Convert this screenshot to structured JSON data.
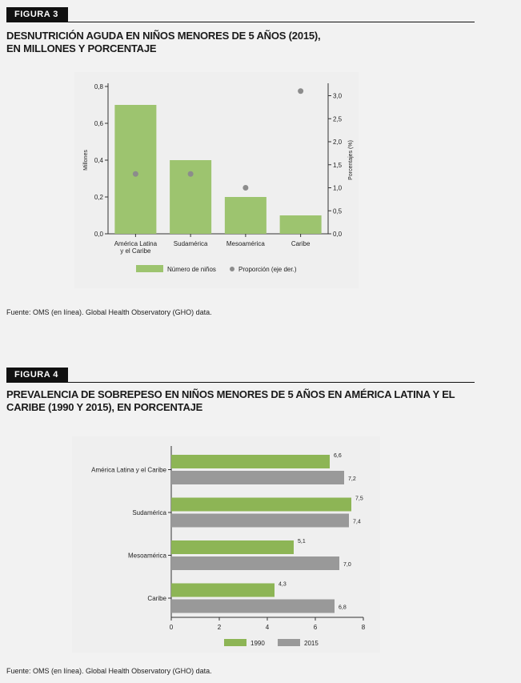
{
  "figure3": {
    "tag": "FIGURA 3",
    "title_lines": [
      "DESNUTRICIÓN AGUDA EN NIÑOS MENORES DE 5 AÑOS (2015),",
      "EN MILLONES Y PORCENTAJE"
    ],
    "source": "Fuente: OMS (en línea). Global Health Observatory (GHO) data."
  },
  "figure4": {
    "tag": "FIGURA 4",
    "title_lines": [
      "PREVALENCIA DE SOBREPESO EN NIÑOS MENORES DE 5 AÑOS EN AMÉRICA LATINA Y EL",
      "CARIBE (1990 Y 2015), EN PORCENTAJE"
    ],
    "source": "Fuente: OMS (en línea). Global Health Observatory (GHO) data."
  },
  "chart_data": [
    {
      "type": "bar",
      "categories": [
        [
          "América Latina",
          "y el Caribe"
        ],
        [
          "Sudamérica"
        ],
        [
          "Mesoamérica"
        ],
        [
          "Caribe"
        ]
      ],
      "series": [
        {
          "name": "Número de niños",
          "values": [
            0.7,
            0.4,
            0.2,
            0.1
          ],
          "color": "#9dc46f",
          "axis": "left"
        },
        {
          "name": "Proporción (eje der.)",
          "values": [
            1.3,
            1.3,
            1.0,
            3.1
          ],
          "color": "#8c8c8c",
          "axis": "right",
          "mark": "scatter"
        }
      ],
      "ylabel": "Millones",
      "y2label": "Porcentajes (%)",
      "ylim": [
        0,
        0.8
      ],
      "y2lim": [
        0,
        3.2
      ],
      "yticks": [
        "0,0",
        "0,2",
        "0,4",
        "0,6",
        "0,8"
      ],
      "y2ticks": [
        "0,0",
        "0,5",
        "1,0",
        "1,5",
        "2,0",
        "2,5",
        "3,0"
      ],
      "legend": "bottom"
    },
    {
      "type": "bar",
      "orientation": "horizontal",
      "categories": [
        "América Latina y el Caribe",
        "Sudamérica",
        "Mesoamérica",
        "Caribe"
      ],
      "series": [
        {
          "name": "1990",
          "values": [
            6.6,
            7.5,
            5.1,
            4.3
          ],
          "labels": [
            "6,6",
            "7,5",
            "5,1",
            "4,3"
          ],
          "color": "#8db555"
        },
        {
          "name": "2015",
          "values": [
            7.2,
            7.4,
            7.0,
            6.8
          ],
          "labels": [
            "7,2",
            "7,4",
            "7,0",
            "6,8"
          ],
          "color": "#999999"
        }
      ],
      "xlim": [
        0,
        8
      ],
      "xticks": [
        "0",
        "2",
        "4",
        "6",
        "8"
      ],
      "legend": "bottom"
    }
  ]
}
